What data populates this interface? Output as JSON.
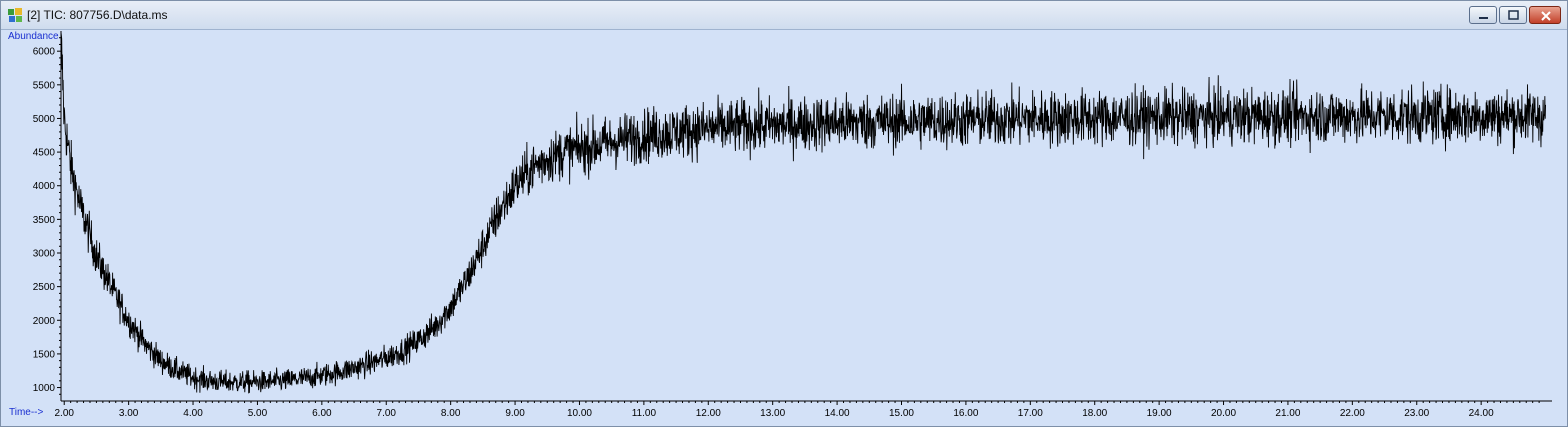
{
  "window": {
    "title": "[2] TIC: 807756.D\\data.ms",
    "buttons": {
      "minimize": "minimize-icon",
      "maximize": "maximize-icon",
      "close": "close-icon"
    }
  },
  "chart_data": {
    "type": "line",
    "ylabel": "Abundance",
    "xlabel": "Time-->",
    "xlim": [
      1.95,
      25.1
    ],
    "ylim": [
      800,
      6300
    ],
    "x_ticks": [
      "2.00",
      "3.00",
      "4.00",
      "5.00",
      "6.00",
      "7.00",
      "8.00",
      "9.00",
      "10.00",
      "11.00",
      "12.00",
      "13.00",
      "14.00",
      "15.00",
      "16.00",
      "17.00",
      "18.00",
      "19.00",
      "20.00",
      "21.00",
      "22.00",
      "23.00",
      "24.00"
    ],
    "y_ticks": [
      "1000",
      "1500",
      "2000",
      "2500",
      "3000",
      "3500",
      "4000",
      "4500",
      "5000",
      "5500",
      "6000"
    ],
    "grid": false,
    "series": [
      {
        "color": "#000000",
        "x": [
          1.95,
          2.0,
          2.1,
          2.25,
          2.5,
          2.75,
          3.0,
          3.25,
          3.5,
          3.75,
          4.0,
          4.25,
          4.5,
          4.75,
          5.0,
          5.25,
          5.5,
          5.75,
          6.0,
          6.25,
          6.5,
          6.75,
          7.0,
          7.25,
          7.5,
          7.75,
          8.0,
          8.25,
          8.5,
          8.75,
          9.0,
          9.25,
          9.5,
          9.75,
          10.0,
          10.5,
          11.0,
          11.5,
          12.0,
          12.5,
          13.0,
          13.5,
          14.0,
          14.5,
          15.0,
          15.5,
          16.0,
          16.5,
          17.0,
          17.5,
          18.0,
          18.5,
          19.0,
          19.5,
          20.0,
          20.5,
          21.0,
          21.5,
          22.0,
          22.5,
          23.0,
          23.5,
          24.0,
          24.5,
          25.0
        ],
        "y": [
          6200,
          5000,
          4300,
          3700,
          2950,
          2450,
          2000,
          1650,
          1400,
          1250,
          1150,
          1100,
          1080,
          1080,
          1080,
          1090,
          1110,
          1140,
          1180,
          1230,
          1290,
          1360,
          1440,
          1550,
          1700,
          1900,
          2200,
          2600,
          3100,
          3600,
          4000,
          4250,
          4400,
          4500,
          4550,
          4650,
          4750,
          4800,
          4850,
          4880,
          4900,
          4920,
          4940,
          4950,
          4960,
          4970,
          4980,
          4990,
          5000,
          5000,
          5010,
          5010,
          5020,
          5020,
          5030,
          5030,
          5030,
          5040,
          5040,
          5040,
          5040,
          5040,
          5040,
          5040,
          5040
        ]
      }
    ]
  }
}
